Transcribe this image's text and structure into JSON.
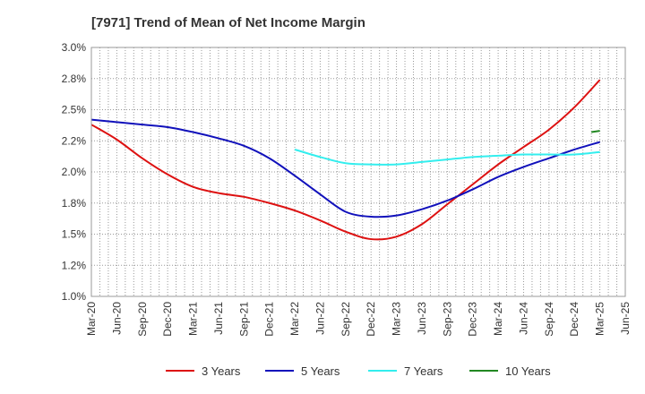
{
  "chart_data": {
    "type": "line",
    "title": "[7971]  Trend of Mean of Net Income Margin",
    "xlabel": "",
    "ylabel": "",
    "x": [
      "Mar-20",
      "Jun-20",
      "Sep-20",
      "Dec-20",
      "Mar-21",
      "Jun-21",
      "Sep-21",
      "Dec-21",
      "Mar-22",
      "Jun-22",
      "Sep-22",
      "Dec-22",
      "Mar-23",
      "Jun-23",
      "Sep-23",
      "Dec-23",
      "Mar-24",
      "Jun-24",
      "Sep-24",
      "Dec-24",
      "Mar-25",
      "Jun-25"
    ],
    "ylim": [
      1.0,
      3.0
    ],
    "yticks": [
      1.0,
      1.25,
      1.5,
      1.75,
      2.0,
      2.25,
      2.5,
      2.75,
      3.0
    ],
    "ytick_labels": [
      "1.0%",
      "1.2%",
      "1.5%",
      "1.8%",
      "2.0%",
      "2.2%",
      "2.5%",
      "2.8%",
      "3.0%"
    ],
    "grid": true,
    "legend_position": "bottom",
    "series": [
      {
        "name": "3 Years",
        "color": "#dd1111",
        "values": [
          2.38,
          2.26,
          2.11,
          1.98,
          1.88,
          1.83,
          1.8,
          1.75,
          1.69,
          1.61,
          1.52,
          1.46,
          1.48,
          1.58,
          1.74,
          1.9,
          2.06,
          2.2,
          2.34,
          2.52,
          2.74,
          null
        ]
      },
      {
        "name": "5 Years",
        "color": "#1111bb",
        "values": [
          2.42,
          2.4,
          2.38,
          2.36,
          2.32,
          2.27,
          2.21,
          2.11,
          1.97,
          1.82,
          1.68,
          1.64,
          1.65,
          1.7,
          1.77,
          1.86,
          1.96,
          2.04,
          2.11,
          2.18,
          2.24,
          null
        ]
      },
      {
        "name": "7 Years",
        "color": "#33eeee",
        "values": [
          null,
          null,
          null,
          null,
          null,
          null,
          null,
          null,
          2.18,
          2.12,
          2.07,
          2.06,
          2.06,
          2.08,
          2.1,
          2.12,
          2.13,
          2.14,
          2.14,
          2.14,
          2.16,
          null
        ]
      },
      {
        "name": "10 Years",
        "color": "#228822",
        "values": [
          null,
          null,
          null,
          null,
          null,
          null,
          null,
          null,
          null,
          null,
          null,
          null,
          null,
          null,
          null,
          null,
          null,
          null,
          null,
          null,
          2.33,
          null
        ],
        "prev_value": 2.32
      }
    ]
  }
}
